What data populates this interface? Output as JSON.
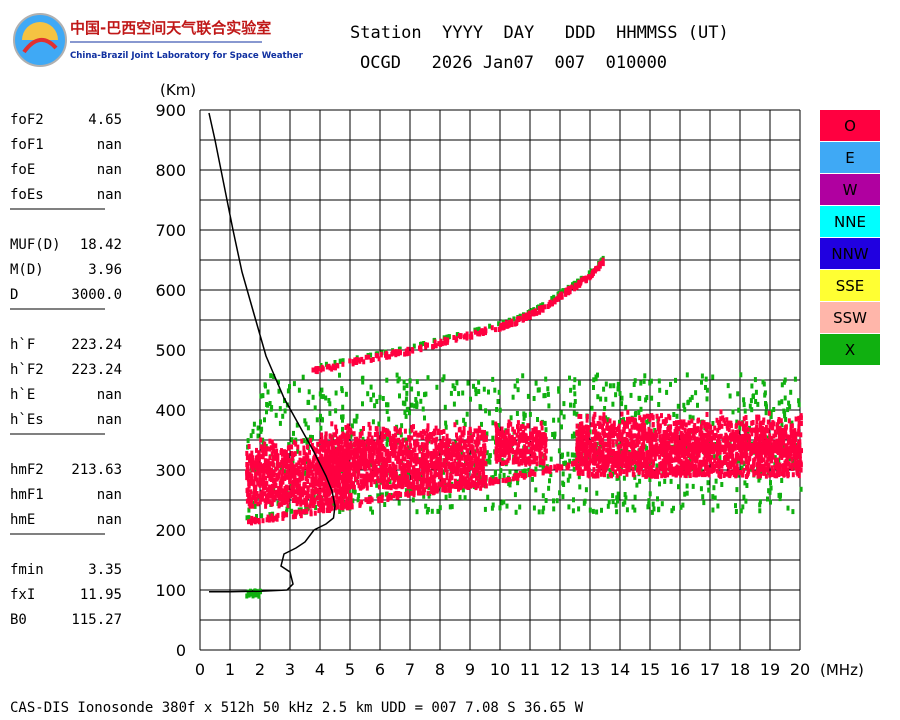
{
  "header": {
    "logo_cn": "中国-巴西空间天气联合实验室",
    "logo_en": "China-Brazil Joint Laboratory for Space Weather",
    "station_header": "Station  YYYY  DAY   DDD  HHMMSS (UT)",
    "station_values": "OCGD   2026 Jan07  007  010000"
  },
  "params": [
    {
      "key": "foF2",
      "value": "4.65"
    },
    {
      "key": "foF1",
      "value": "nan"
    },
    {
      "key": "foE",
      "value": "nan"
    },
    {
      "key": "foEs",
      "value": "nan"
    },
    {
      "key": "MUF(D)",
      "value": "18.42"
    },
    {
      "key": "M(D)",
      "value": "3.96"
    },
    {
      "key": "D",
      "value": "3000.0"
    },
    {
      "key": "h`F",
      "value": "223.24"
    },
    {
      "key": "h`F2",
      "value": "223.24"
    },
    {
      "key": "h`E",
      "value": "nan"
    },
    {
      "key": "h`Es",
      "value": "nan"
    },
    {
      "key": "hmF2",
      "value": "213.63"
    },
    {
      "key": "hmF1",
      "value": "nan"
    },
    {
      "key": "hmE",
      "value": "nan"
    },
    {
      "key": "fmin",
      "value": "3.35"
    },
    {
      "key": "fxI",
      "value": "11.95"
    },
    {
      "key": "B0",
      "value": "115.27"
    }
  ],
  "legend": [
    {
      "label": "O",
      "color": "#ff0040"
    },
    {
      "label": "E",
      "color": "#3fa9f5"
    },
    {
      "label": "W",
      "color": "#b000a0"
    },
    {
      "label": "NNE",
      "color": "#00ffff"
    },
    {
      "label": "NNW",
      "color": "#2000e0"
    },
    {
      "label": "SSE",
      "color": "#ffff33"
    },
    {
      "label": "SSW",
      "color": "#ffb6aa"
    },
    {
      "label": "X",
      "color": "#10b010"
    }
  ],
  "footer": "CAS-DIS Ionosonde 380f x 512h 50 kHz 2.5 km UDD = 007 7.08 S 36.65 W",
  "chart_data": {
    "type": "scatter",
    "xlabel": "(MHz)",
    "ylabel": "(Km)",
    "xlim": [
      0,
      20
    ],
    "ylim": [
      0,
      900
    ],
    "xticks": [
      0,
      1,
      2,
      3,
      4,
      5,
      6,
      7,
      8,
      9,
      10,
      11,
      12,
      13,
      14,
      15,
      16,
      17,
      18,
      19,
      20
    ],
    "yticks": [
      0,
      100,
      200,
      300,
      400,
      500,
      600,
      700,
      800,
      900
    ],
    "grid": true,
    "legend_position": "right",
    "series": [
      {
        "name": "O",
        "color": "#ff0040",
        "traces": [
          {
            "x": [
              1.5,
              2.5,
              3.5,
              4.5,
              5.5,
              6.5,
              7.5,
              8.5,
              9.5,
              10.5,
              11.5,
              12.5,
              13.5,
              14.5,
              15.5,
              16.5,
              17.5,
              18.5,
              19.5,
              20.0
            ],
            "y": [
              215,
              222,
              230,
              238,
              248,
              258,
              265,
              272,
              280,
              290,
              300,
              310,
              318,
              326,
              332,
              336,
              338,
              338,
              336,
              335
            ]
          },
          {
            "x": [
              3.7,
              5.0,
              6.0,
              7.0,
              8.0,
              9.0,
              10.0,
              10.5,
              11.0,
              11.5,
              12.0,
              12.5,
              13.0,
              13.4
            ],
            "y": [
              466,
              480,
              490,
              500,
              514,
              526,
              540,
              548,
              560,
              574,
              592,
              608,
              626,
              648
            ]
          }
        ],
        "clouds": [
          {
            "x": [
              1.5,
              5.0
            ],
            "y": [
              240,
              355
            ]
          },
          {
            "x": [
              4.0,
              9.5
            ],
            "y": [
              270,
              380
            ]
          },
          {
            "x": [
              9.8,
              11.5
            ],
            "y": [
              310,
              385
            ]
          },
          {
            "x": [
              12.5,
              20.0
            ],
            "y": [
              290,
              400
            ]
          }
        ]
      },
      {
        "name": "X",
        "color": "#10b010",
        "clouds": [
          {
            "x": [
              1.5,
              20.0
            ],
            "y": [
              230,
              460
            ]
          },
          {
            "x": [
              1.5,
              2.0
            ],
            "y": [
              90,
              100
            ]
          }
        ]
      },
      {
        "name": "profile",
        "color": "#000000",
        "x": [
          0.3,
          0.5,
          0.7,
          0.9,
          1.1,
          1.4,
          1.8,
          2.2,
          2.8,
          3.3,
          3.8,
          4.2,
          4.4,
          4.5,
          4.45,
          4.2,
          3.8,
          3.5,
          3.2,
          2.8,
          2.7,
          3.0,
          3.1,
          2.9,
          2.0,
          1.0,
          0.3
        ],
        "y": [
          895,
          850,
          800,
          750,
          700,
          630,
          560,
          490,
          420,
          375,
          330,
          290,
          265,
          240,
          220,
          210,
          200,
          180,
          170,
          160,
          140,
          130,
          110,
          100,
          98,
          97,
          97
        ]
      }
    ]
  }
}
